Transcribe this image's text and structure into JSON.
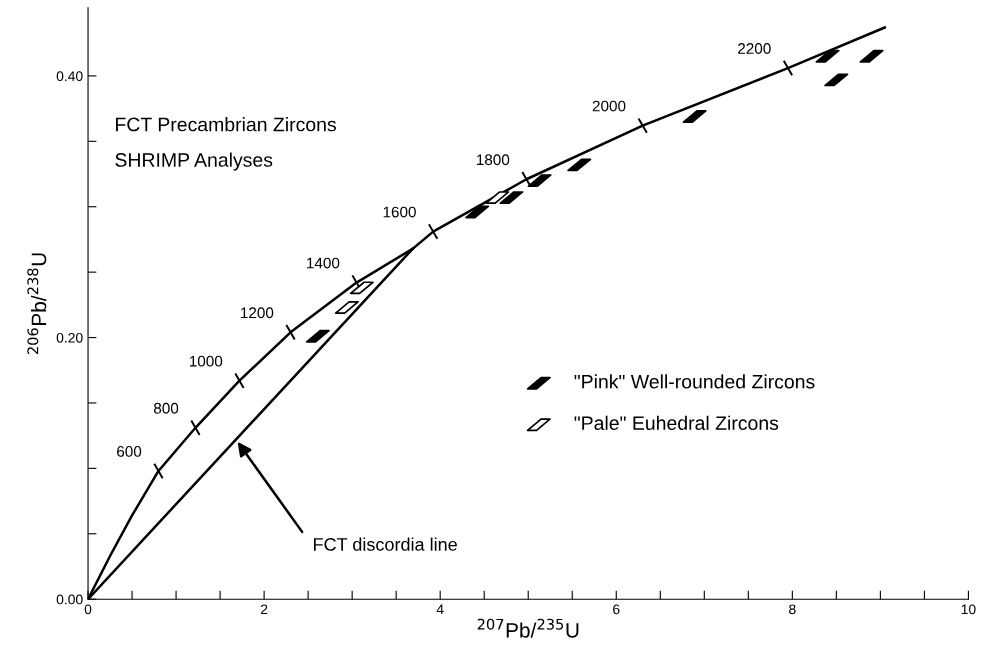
{
  "chart_data": {
    "type": "line",
    "xlabel": "$^{207}$Pb/$^{235}$U",
    "ylabel": "$^{206}$Pb/$^{238}$U",
    "xlim": [
      0,
      10
    ],
    "ylim": [
      0,
      0.452
    ],
    "xticks": [
      0,
      {
        "value": 0.5,
        "label": null
      },
      {
        "value": 1,
        "label": null
      },
      {
        "value": 1.5,
        "label": null
      },
      2,
      {
        "value": 2.5,
        "label": null
      },
      {
        "value": 3,
        "label": null
      },
      {
        "value": 3.5,
        "label": null
      },
      4,
      {
        "value": 4.5,
        "label": null
      },
      {
        "value": 5,
        "label": null
      },
      {
        "value": 5.5,
        "label": null
      },
      6,
      {
        "value": 6.5,
        "label": null
      },
      {
        "value": 7,
        "label": null
      },
      {
        "value": 7.5,
        "label": null
      },
      8,
      {
        "value": 8.5,
        "label": null
      },
      {
        "value": 9,
        "label": null
      },
      {
        "value": 9.5,
        "label": null
      },
      10
    ],
    "yticks": [
      {
        "value": 0,
        "label": "0.00"
      },
      {
        "value": 0.05,
        "label": null
      },
      {
        "value": 0.1,
        "label": null
      },
      {
        "value": 0.15,
        "label": null
      },
      {
        "value": 0.2,
        "label": "0.20"
      },
      {
        "value": 0.25,
        "label": null
      },
      {
        "value": 0.3,
        "label": null
      },
      {
        "value": 0.35,
        "label": null
      },
      {
        "value": 0.4,
        "label": "0.40"
      }
    ],
    "grid": false,
    "legend": "right",
    "series": [
      {
        "color": "#000000",
        "marker": "none",
        "x": [
          0,
          0.25,
          0.5,
          0.8,
          1.22,
          1.72,
          2.3,
          3.05,
          3.69,
          3.92,
          4.98,
          6.3,
          7.95,
          9.05
        ],
        "values": [
          0,
          0.033,
          0.064,
          0.098,
          0.131,
          0.167,
          0.204,
          0.242,
          0.268,
          0.281,
          0.321,
          0.362,
          0.406,
          0.437
        ]
      },
      {
        "color": "#000000",
        "marker": "none",
        "x": [
          0,
          3.69
        ],
        "values": [
          0,
          0.268
        ]
      },
      {
        "type": "scatter",
        "name": "\"Pink\" Well-rounded Zircons",
        "color": "#000000",
        "marker": "diamond",
        "x": [
          2.61,
          4.42,
          4.81,
          5.13,
          5.58,
          6.89,
          8.4,
          8.5,
          8.9
        ],
        "values": [
          0.201,
          0.296,
          0.307,
          0.32,
          0.332,
          0.369,
          0.415,
          0.397,
          0.415
        ]
      },
      {
        "type": "scatter",
        "name": "\"Pale\" Euhedral Zircons",
        "color": "#ffffff",
        "marker": "diamond",
        "x": [
          2.94,
          3.11,
          4.65
        ],
        "values": [
          0.223,
          0.238,
          0.307
        ]
      }
    ],
    "annotations": [
      "FCT Precambrian Zircons",
      "SHRIMP Analyses",
      "FCT discordia line",
      {
        "text": "600",
        "x": 0.8,
        "y": 0.098
      },
      {
        "text": "800",
        "x": 1.22,
        "y": 0.131
      },
      {
        "text": "1000",
        "x": 1.72,
        "y": 0.167
      },
      {
        "text": "1200",
        "x": 2.3,
        "y": 0.204
      },
      {
        "text": "1400",
        "x": 3.05,
        "y": 0.242
      },
      {
        "text": "1600",
        "x": 3.92,
        "y": 0.281
      },
      {
        "text": "1800",
        "x": 4.98,
        "y": 0.321
      },
      {
        "text": "2000",
        "x": 6.3,
        "y": 0.362
      },
      {
        "text": "2200",
        "x": 7.95,
        "y": 0.406
      }
    ]
  }
}
